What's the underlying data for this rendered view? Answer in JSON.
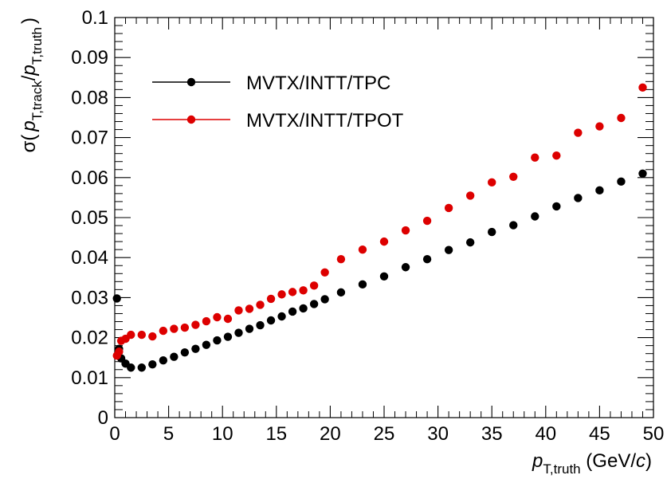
{
  "chart_data": {
    "type": "scatter",
    "xlim": [
      0,
      50
    ],
    "ylim": [
      0,
      0.1
    ],
    "x_ticks": [
      "0",
      "5",
      "10",
      "15",
      "20",
      "25",
      "30",
      "35",
      "40",
      "45",
      "50"
    ],
    "y_ticks": [
      "0",
      "0.01",
      "0.02",
      "0.03",
      "0.04",
      "0.05",
      "0.06",
      "0.07",
      "0.08",
      "0.09",
      "0.1"
    ],
    "x_tick_values": [
      0,
      5,
      10,
      15,
      20,
      25,
      30,
      35,
      40,
      45,
      50
    ],
    "y_tick_values": [
      0,
      0.01,
      0.02,
      0.03,
      0.04,
      0.05,
      0.06,
      0.07,
      0.08,
      0.09,
      0.1
    ],
    "xlabel": {
      "symbol": "p",
      "subscript": "T,truth",
      "units_prefix": " (GeV/",
      "units_var": "c",
      "units_suffix": ")"
    },
    "ylabel": {
      "prefix": "σ(",
      "num_symbol": "p",
      "num_sub": "T,track",
      "slash": "/",
      "den_symbol": "p",
      "den_sub": "T,truth",
      "suffix": ")"
    },
    "legend_position": "top-left",
    "grid": false,
    "series": [
      {
        "name": "MVTX/INTT/TPC",
        "color": "#000000",
        "x": [
          0.2,
          0.4,
          0.6,
          1.0,
          1.5,
          2.5,
          3.5,
          4.5,
          5.5,
          6.5,
          7.5,
          8.5,
          9.5,
          10.5,
          11.5,
          12.5,
          13.5,
          14.5,
          15.5,
          16.5,
          17.5,
          18.5,
          19.5,
          21,
          23,
          25,
          27,
          29,
          31,
          33,
          35,
          37,
          39,
          41,
          43,
          45,
          47,
          49
        ],
        "y": [
          0.0298,
          0.0172,
          0.0148,
          0.0135,
          0.0125,
          0.0125,
          0.0133,
          0.0143,
          0.0152,
          0.0163,
          0.0172,
          0.0182,
          0.0193,
          0.0202,
          0.0212,
          0.0222,
          0.0231,
          0.0243,
          0.0253,
          0.0265,
          0.0273,
          0.0284,
          0.0296,
          0.0313,
          0.0333,
          0.0353,
          0.0376,
          0.0396,
          0.0419,
          0.0438,
          0.0464,
          0.0481,
          0.0503,
          0.0528,
          0.0549,
          0.0568,
          0.059,
          0.061
        ]
      },
      {
        "name": "MVTX/INTT/TPOT",
        "color": "#dd0000",
        "x": [
          0.2,
          0.4,
          0.6,
          1.0,
          1.5,
          2.5,
          3.5,
          4.5,
          5.5,
          6.5,
          7.5,
          8.5,
          9.5,
          10.5,
          11.5,
          12.5,
          13.5,
          14.5,
          15.5,
          16.5,
          17.5,
          18.5,
          19.5,
          21,
          23,
          25,
          27,
          29,
          31,
          33,
          35,
          37,
          39,
          41,
          43,
          45,
          47,
          49
        ],
        "y": [
          0.0155,
          0.0165,
          0.0192,
          0.0197,
          0.0207,
          0.0207,
          0.0203,
          0.0217,
          0.0222,
          0.0225,
          0.0232,
          0.0241,
          0.0251,
          0.0247,
          0.0268,
          0.0272,
          0.0282,
          0.0297,
          0.0308,
          0.0314,
          0.0318,
          0.033,
          0.0363,
          0.0396,
          0.042,
          0.044,
          0.0468,
          0.0492,
          0.0524,
          0.0555,
          0.0588,
          0.0602,
          0.065,
          0.0655,
          0.0712,
          0.0728,
          0.0749,
          0.0825
        ]
      }
    ]
  }
}
